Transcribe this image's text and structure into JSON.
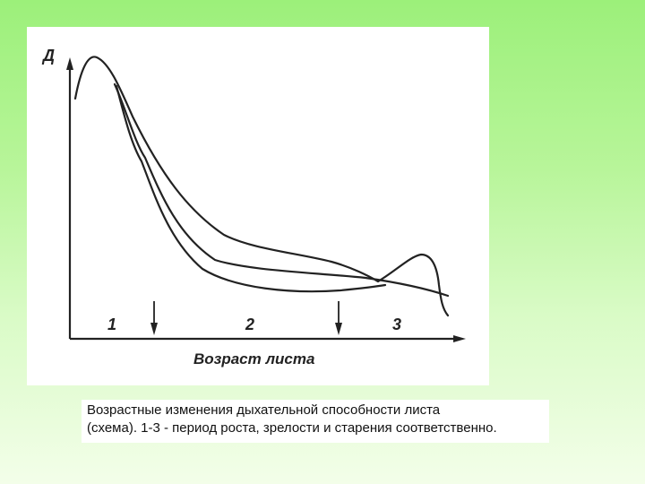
{
  "figure": {
    "y_axis_label": "Д",
    "x_axis_label": "Возраст листа",
    "period_labels": [
      "1",
      "2",
      "3"
    ]
  },
  "caption": {
    "line1": "Возрастные изменения дыхательной способности листа",
    "line2": " (схема). 1-3 - период роста, зрелости и старения соответственно."
  }
}
